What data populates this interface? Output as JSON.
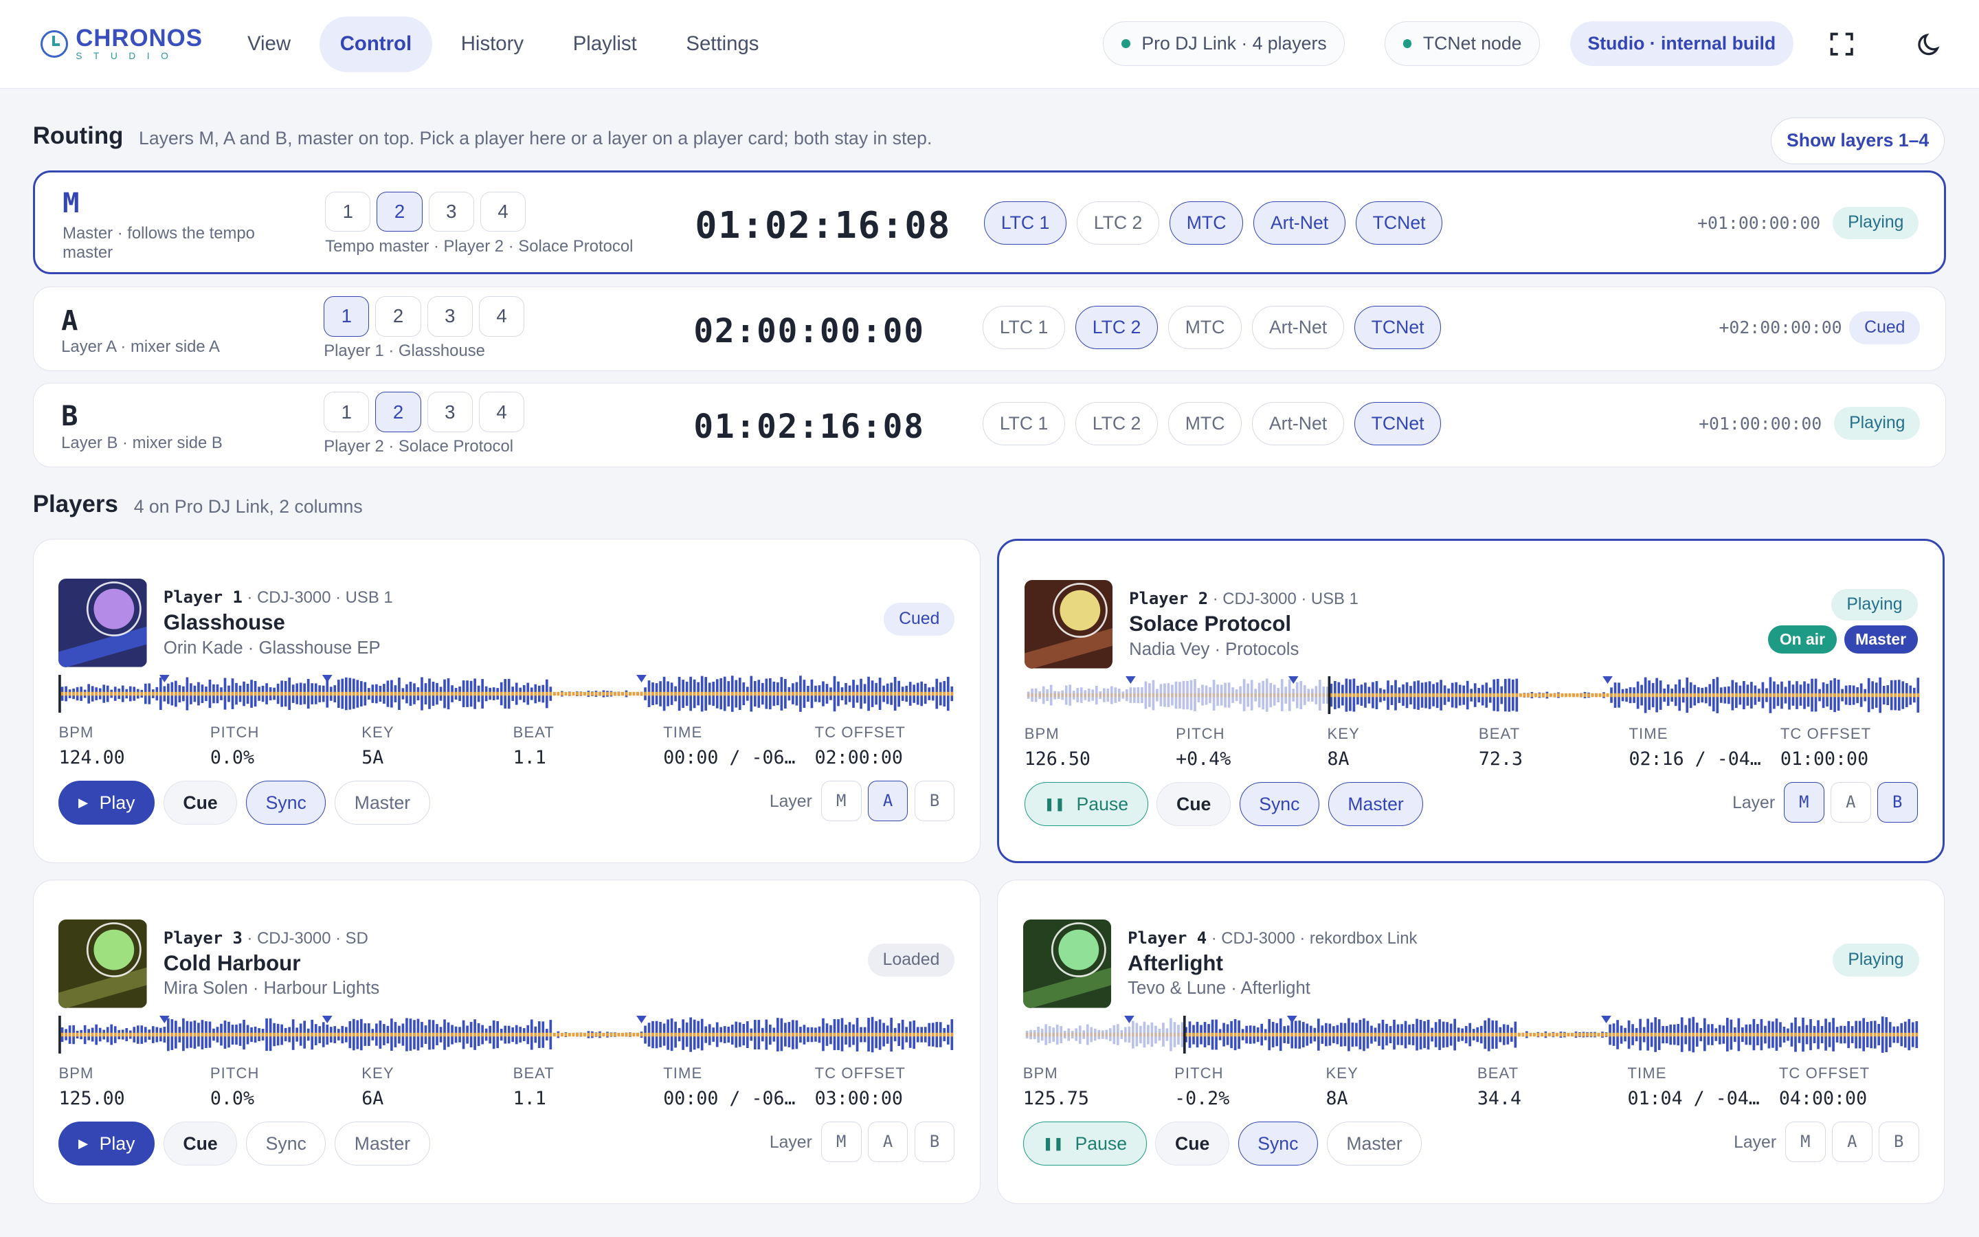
{
  "app": {
    "logo_main": "CHRONOS",
    "logo_sub": "STUDIO"
  },
  "nav": [
    "View",
    "Control",
    "History",
    "Playlist",
    "Settings"
  ],
  "header": {
    "link_chip": "Pro DJ Link · 4 players",
    "tcnet_chip": "TCNet node",
    "build_chip": "Studio · internal build"
  },
  "routing": {
    "title": "Routing",
    "subtitle": "Layers M, A and B, master on top. Pick a player here or a layer on a player card; both stay in step.",
    "show_layers": "Show layers 1–4",
    "outputs": [
      "LTC 1",
      "LTC 2",
      "MTC",
      "Art-Net",
      "TCNet"
    ],
    "players": [
      "1",
      "2",
      "3",
      "4"
    ],
    "layers": [
      {
        "letter": "M",
        "desc": "Master · follows the tempo master",
        "selected": "2",
        "source": "Tempo master · Player 2 · Solace Protocol",
        "timecode": "01:02:16:08",
        "outputs_on": [
          "LTC 1",
          "MTC",
          "Art-Net",
          "TCNet"
        ],
        "offset": "+01:00:00:00",
        "status": "Playing"
      },
      {
        "letter": "A",
        "desc": "Layer A · mixer side A",
        "selected": "1",
        "source": "Player 1 · Glasshouse",
        "timecode": "02:00:00:00",
        "outputs_on": [
          "LTC 2",
          "TCNet"
        ],
        "offset": "+02:00:00:00",
        "status": "Cued"
      },
      {
        "letter": "B",
        "desc": "Layer B · mixer side B",
        "selected": "2",
        "source": "Player 2 · Solace Protocol",
        "timecode": "01:02:16:08",
        "outputs_on": [
          "TCNet"
        ],
        "offset": "+01:00:00:00",
        "status": "Playing"
      }
    ]
  },
  "players_section": {
    "title": "Players",
    "subtitle": "4 on Pro DJ Link, 2 columns"
  },
  "stat_labels": [
    "BPM",
    "PITCH",
    "KEY",
    "BEAT",
    "TIME",
    "TC OFFSET"
  ],
  "layer_label": "Layer",
  "layer_letters": [
    "M",
    "A",
    "B"
  ],
  "players": [
    {
      "name": "Player 1",
      "device": "CDJ-3000 · USB 1",
      "title": "Glasshouse",
      "artist": "Orin Kade · Glasshouse EP",
      "status": "Cued",
      "badges": [],
      "bpm": "124.00",
      "pitch": "0.0%",
      "key": "5A",
      "beat": "1.1",
      "time": "00:00 / -06…",
      "tc_offset": "02:00:00",
      "transport": "Play",
      "cue": "Cue",
      "sync": "Sync",
      "master": "Master",
      "sync_on": true,
      "master_on": false,
      "layer": "A",
      "progress": 0.0,
      "art_bg": "#2a2f6b",
      "art_circle": "#b48ce8",
      "art_stripe": "#3a4fbf"
    },
    {
      "name": "Player 2",
      "device": "CDJ-3000 · USB 1",
      "title": "Solace Protocol",
      "artist": "Nadia Vey · Protocols",
      "status": "Playing",
      "badges": [
        "On air",
        "Master"
      ],
      "bpm": "126.50",
      "pitch": "+0.4%",
      "key": "8A",
      "beat": "72.3",
      "time": "02:16 / -04…",
      "tc_offset": "01:00:00",
      "transport": "Pause",
      "cue": "Cue",
      "sync": "Sync",
      "master": "Master",
      "sync_on": true,
      "master_on": true,
      "layer": "MB",
      "progress": 0.34,
      "art_bg": "#4a2418",
      "art_circle": "#e8d880",
      "art_stripe": "#8a4a30"
    },
    {
      "name": "Player 3",
      "device": "CDJ-3000 · SD",
      "title": "Cold Harbour",
      "artist": "Mira Solen · Harbour Lights",
      "status": "Loaded",
      "badges": [],
      "bpm": "125.00",
      "pitch": "0.0%",
      "key": "6A",
      "beat": "1.1",
      "time": "00:00 / -06…",
      "tc_offset": "03:00:00",
      "transport": "Play",
      "cue": "Cue",
      "sync": "Sync",
      "master": "Master",
      "sync_on": false,
      "master_on": false,
      "layer": "",
      "progress": 0.0,
      "art_bg": "#3a3c14",
      "art_circle": "#9ee080",
      "art_stripe": "#6a7030"
    },
    {
      "name": "Player 4",
      "device": "CDJ-3000 · rekordbox Link",
      "title": "Afterlight",
      "artist": "Tevo & Lune · Afterlight",
      "status": "Playing",
      "badges": [],
      "bpm": "125.75",
      "pitch": "-0.2%",
      "key": "8A",
      "beat": "34.4",
      "time": "01:04 / -04…",
      "tc_offset": "04:00:00",
      "transport": "Pause",
      "cue": "Cue",
      "sync": "Sync",
      "master": "Master",
      "sync_on": true,
      "master_on": false,
      "layer": "",
      "progress": 0.18,
      "art_bg": "#24401e",
      "art_circle": "#90e098",
      "art_stripe": "#4a7a3a"
    }
  ],
  "colors": {
    "accent": "#3346b3",
    "teal": "#1e9b85",
    "wave_blue": "#3a4fbf",
    "wave_orange": "#f0a030"
  }
}
